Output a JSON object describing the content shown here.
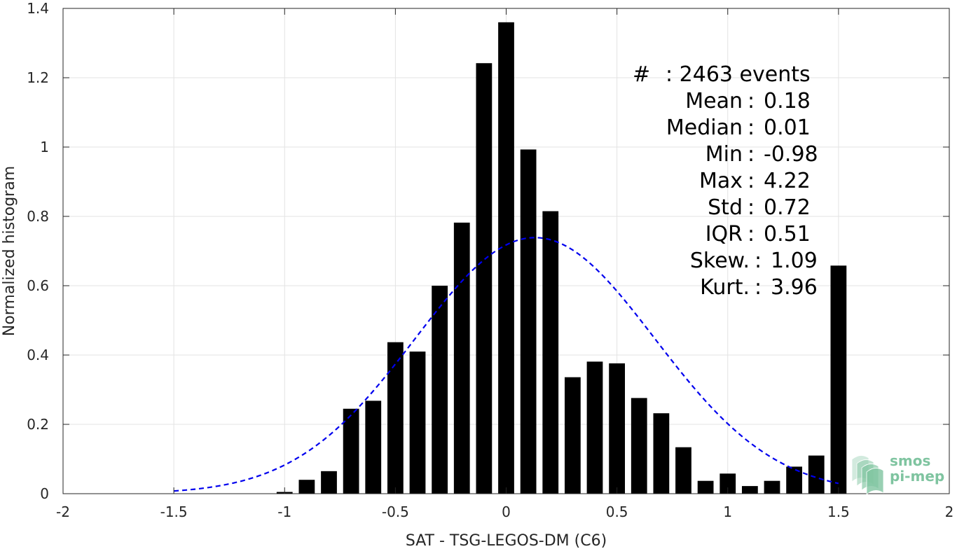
{
  "chart_data": {
    "type": "bar",
    "xlabel": "SAT - TSG-LEGOS-DM (C6)",
    "ylabel": "Normalized histogram",
    "xlim": [
      -2,
      2
    ],
    "ylim": [
      0,
      1.4
    ],
    "xticks": [
      -2,
      -1.5,
      -1,
      -0.5,
      0,
      0.5,
      1,
      1.5,
      2
    ],
    "yticks": [
      0,
      0.2,
      0.4,
      0.6,
      0.8,
      1,
      1.2,
      1.4
    ],
    "xtick_labels": [
      "-2",
      "-1.5",
      "-1",
      "-0.5",
      "0",
      "0.5",
      "1",
      "1.5",
      "2"
    ],
    "ytick_labels": [
      "0",
      "0.2",
      "0.4",
      "0.6",
      "0.8",
      "1",
      "1.2",
      "1.4"
    ],
    "grid": true,
    "bar_color": "#000000",
    "bins": [
      {
        "x": -1.0,
        "value": 0.005
      },
      {
        "x": -0.9,
        "value": 0.04
      },
      {
        "x": -0.8,
        "value": 0.065
      },
      {
        "x": -0.7,
        "value": 0.245
      },
      {
        "x": -0.6,
        "value": 0.268
      },
      {
        "x": -0.5,
        "value": 0.437
      },
      {
        "x": -0.4,
        "value": 0.41
      },
      {
        "x": -0.3,
        "value": 0.6
      },
      {
        "x": -0.2,
        "value": 0.782
      },
      {
        "x": -0.1,
        "value": 1.242
      },
      {
        "x": 0.0,
        "value": 1.36
      },
      {
        "x": 0.1,
        "value": 0.993
      },
      {
        "x": 0.2,
        "value": 0.815
      },
      {
        "x": 0.3,
        "value": 0.336
      },
      {
        "x": 0.4,
        "value": 0.381
      },
      {
        "x": 0.5,
        "value": 0.376
      },
      {
        "x": 0.6,
        "value": 0.276
      },
      {
        "x": 0.7,
        "value": 0.232
      },
      {
        "x": 0.8,
        "value": 0.134
      },
      {
        "x": 0.9,
        "value": 0.037
      },
      {
        "x": 1.0,
        "value": 0.058
      },
      {
        "x": 1.1,
        "value": 0.022
      },
      {
        "x": 1.2,
        "value": 0.037
      },
      {
        "x": 1.3,
        "value": 0.078
      },
      {
        "x": 1.4,
        "value": 0.11
      },
      {
        "x": 1.5,
        "value": 0.658
      }
    ],
    "normal_curve": {
      "mean": 0.13,
      "std": 0.54,
      "x_range": [
        -1.5,
        1.5
      ],
      "color": "#0000ee",
      "style": "dashed"
    },
    "annotations": [
      {
        "label": "#",
        "sep": " : ",
        "value": "2463 events"
      },
      {
        "label": "Mean",
        "sep": " : ",
        "value": "0.18"
      },
      {
        "label": "Median",
        "sep": " : ",
        "value": "0.01"
      },
      {
        "label": "Min",
        "sep": " : ",
        "value": "-0.98"
      },
      {
        "label": "Max",
        "sep": " : ",
        "value": "4.22"
      },
      {
        "label": "Std",
        "sep": " : ",
        "value": "0.72"
      },
      {
        "label": "IQR",
        "sep": " : ",
        "value": "0.51"
      },
      {
        "label": "Skew.",
        "sep": " : ",
        "value": "1.09"
      },
      {
        "label": "Kurt.",
        "sep": " : ",
        "value": "3.96"
      }
    ]
  },
  "logo": {
    "line1": "smos",
    "line2": "pi-mep",
    "color": "#7fc4a0"
  }
}
